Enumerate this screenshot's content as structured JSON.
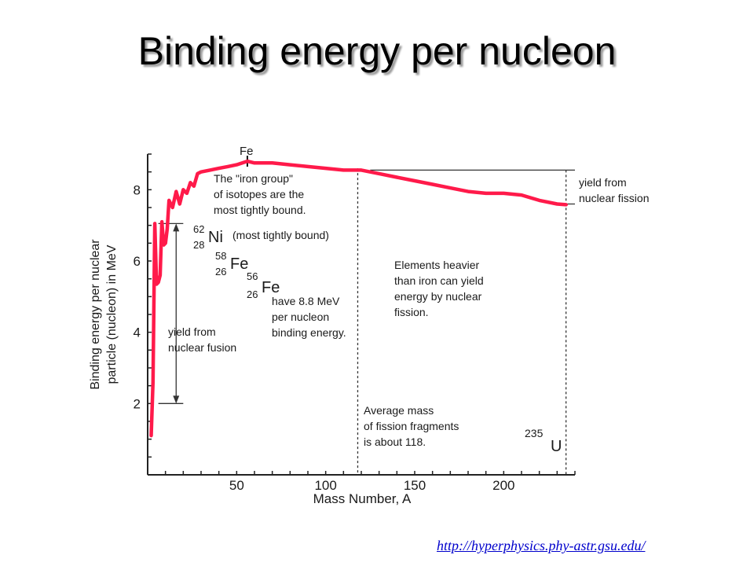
{
  "slide": {
    "title": "Binding energy per nucleon",
    "source": "http://hyperphysics.phy-astr.gsu.edu/"
  },
  "chart_data": {
    "type": "line",
    "title": "",
    "xlabel": "Mass Number, A",
    "ylabel_line1": "Binding energy per nuclear",
    "ylabel_line2": "particle (nucleon) in MeV",
    "xlim": [
      0,
      240
    ],
    "ylim": [
      0,
      9
    ],
    "x_ticks": [
      50,
      100,
      150,
      200
    ],
    "y_ticks": [
      2,
      4,
      6,
      8
    ],
    "series_color": "#ff1a4a",
    "series": [
      {
        "x": [
          2,
          3,
          4,
          5,
          6,
          7,
          8,
          9,
          10,
          11,
          12,
          14,
          16,
          18,
          20,
          22,
          24,
          26,
          28,
          30,
          35,
          40,
          45,
          50,
          56,
          60,
          70,
          80,
          90,
          100,
          110,
          120,
          130,
          140,
          150,
          160,
          170,
          180,
          190,
          200,
          210,
          220,
          230,
          235
        ],
        "y": [
          1.1,
          2.6,
          7.05,
          5.35,
          5.4,
          5.6,
          7.1,
          6.45,
          6.5,
          6.9,
          7.7,
          7.5,
          7.95,
          7.6,
          8.0,
          7.9,
          8.2,
          8.1,
          8.45,
          8.5,
          8.55,
          8.6,
          8.65,
          8.7,
          8.8,
          8.75,
          8.75,
          8.7,
          8.65,
          8.6,
          8.55,
          8.55,
          8.45,
          8.35,
          8.25,
          8.15,
          8.05,
          7.95,
          7.9,
          7.9,
          7.85,
          7.7,
          7.6,
          7.58
        ]
      }
    ],
    "annotations": {
      "fe_marker": "Fe",
      "iron_group": [
        "The \"iron group\"",
        "of isotopes are the",
        "most tightly bound."
      ],
      "ni62": {
        "mass": "62",
        "z": "28",
        "sym": "Ni",
        "note": "(most tightly bound)"
      },
      "fe58": {
        "mass": "58",
        "z": "26",
        "sym": "Fe"
      },
      "fe56": {
        "mass": "56",
        "z": "26",
        "sym": "Fe"
      },
      "fe_binding": [
        "have 8.8 MeV",
        "per nucleon",
        "binding energy."
      ],
      "fusion": [
        "yield from",
        "nuclear fusion"
      ],
      "fission_yield": [
        "yield from",
        "nuclear fission"
      ],
      "heavier": [
        "Elements heavier",
        "than iron can yield",
        "energy by nuclear",
        "fission."
      ],
      "avg_mass": [
        "Average mass",
        "of fission fragments",
        "is about 118."
      ],
      "u235": {
        "mass": "235",
        "sym": "U"
      }
    }
  }
}
